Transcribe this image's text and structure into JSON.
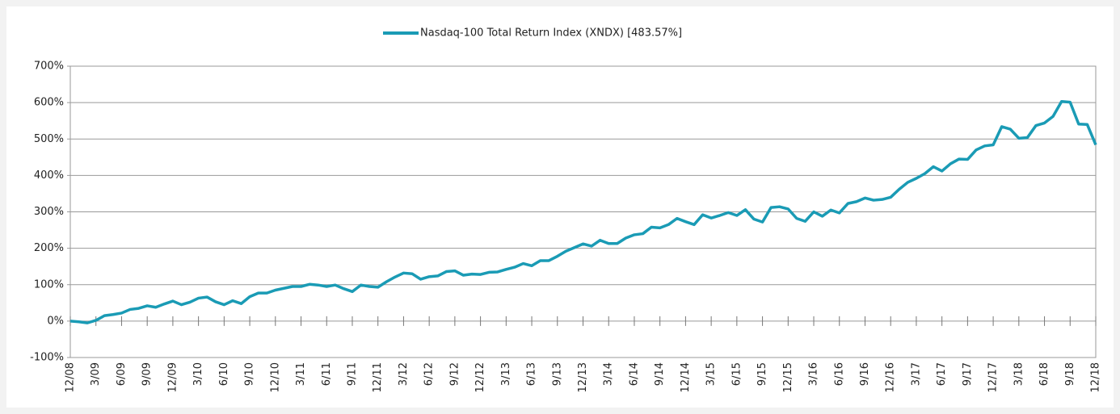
{
  "chart_data": {
    "type": "line",
    "categories": [
      "12/08",
      null,
      null,
      "3/09",
      null,
      null,
      "6/09",
      null,
      null,
      "9/09",
      null,
      null,
      "12/09",
      null,
      null,
      "3/10",
      null,
      null,
      "6/10",
      null,
      null,
      "9/10",
      null,
      null,
      "12/10",
      null,
      null,
      "3/11",
      null,
      null,
      "6/11",
      null,
      null,
      "9/11",
      null,
      null,
      "12/11",
      null,
      null,
      "3/12",
      null,
      null,
      "6/12",
      null,
      null,
      "9/12",
      null,
      null,
      "12/12",
      null,
      null,
      "3/13",
      null,
      null,
      "6/13",
      null,
      null,
      "9/13",
      null,
      null,
      "12/13",
      null,
      null,
      "3/14",
      null,
      null,
      "6/14",
      null,
      null,
      "9/14",
      null,
      null,
      "12/14",
      null,
      null,
      "3/15",
      null,
      null,
      "6/15",
      null,
      null,
      "9/15",
      null,
      null,
      "12/15",
      null,
      null,
      "3/16",
      null,
      null,
      "6/16",
      null,
      null,
      "9/16",
      null,
      null,
      "12/16",
      null,
      null,
      "3/17",
      null,
      null,
      "6/17",
      null,
      null,
      "9/17",
      null,
      null,
      "12/17",
      null,
      null,
      "3/18",
      null,
      null,
      "6/18",
      null,
      null,
      "9/18",
      null,
      null,
      "12/18"
    ],
    "series": [
      {
        "name": "Nasdaq-100 Total Return Index (XNDX) [483.57%]",
        "color": "#1a9bb5",
        "values": [
          0,
          -2,
          -5,
          2,
          15,
          18,
          22,
          32,
          35,
          42,
          38,
          47,
          55,
          45,
          52,
          63,
          66,
          53,
          45,
          56,
          48,
          67,
          77,
          77,
          85,
          90,
          95,
          95,
          101,
          99,
          95,
          99,
          89,
          81,
          99,
          95,
          93,
          108,
          121,
          132,
          130,
          115,
          122,
          124,
          136,
          138,
          126,
          129,
          128,
          134,
          135,
          142,
          148,
          158,
          152,
          166,
          166,
          178,
          192,
          202,
          212,
          206,
          222,
          213,
          213,
          228,
          237,
          240,
          258,
          256,
          265,
          282,
          273,
          265,
          292,
          283,
          290,
          298,
          290,
          306,
          280,
          272,
          312,
          314,
          308,
          282,
          274,
          300,
          288,
          305,
          297,
          323,
          328,
          338,
          332,
          334,
          340,
          362,
          381,
          392,
          405,
          424,
          412,
          432,
          445,
          444,
          470,
          481,
          484,
          534,
          527,
          502,
          504,
          537,
          544,
          562,
          603,
          601,
          541,
          540,
          484
        ]
      }
    ],
    "ylim": [
      -100,
      700
    ],
    "yticks": [
      {
        "value": -100,
        "label": "-100%"
      },
      {
        "value": 0,
        "label": "0%"
      },
      {
        "value": 100,
        "label": "100%"
      },
      {
        "value": 200,
        "label": "200%"
      },
      {
        "value": 300,
        "label": "300%"
      },
      {
        "value": 400,
        "label": "400%"
      },
      {
        "value": 500,
        "label": "500%"
      },
      {
        "value": 600,
        "label": "600%"
      },
      {
        "value": 700,
        "label": "700%"
      }
    ],
    "grid": true,
    "legend": "top"
  }
}
